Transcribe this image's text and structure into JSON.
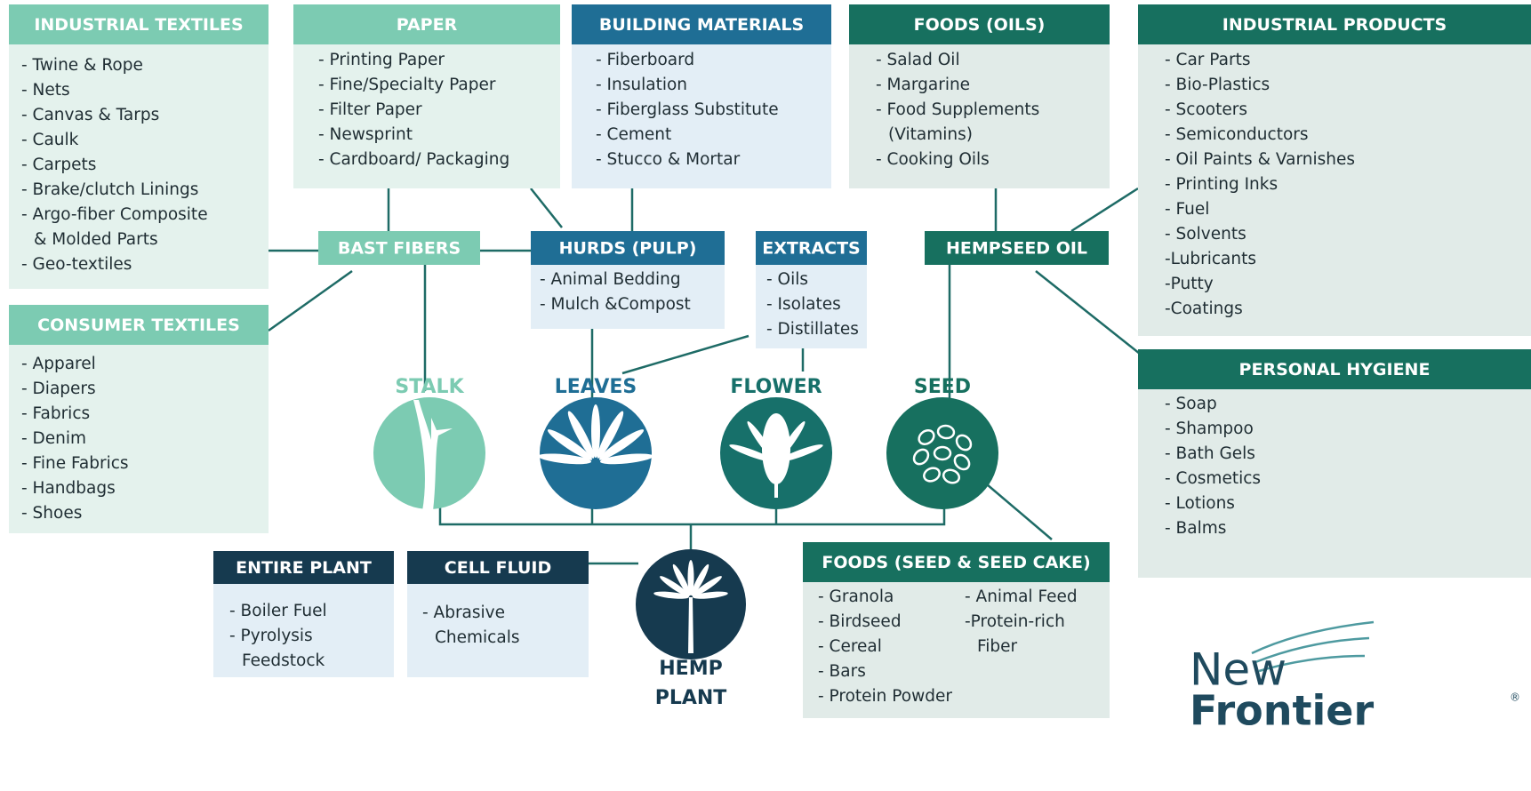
{
  "boxes": [
    {
      "title": "INDUSTRIAL TEXTILES",
      "items": [
        "- Twine & Rope",
        "- Nets",
        "- Canvas & Tarps",
        "- Caulk",
        "- Carpets",
        "- Brake/clutch Linings",
        "- Argo-fiber Composite",
        "& Molded Parts",
        "- Geo-textiles"
      ]
    },
    {
      "title": "PAPER",
      "items": [
        "- Printing Paper",
        "- Fine/Specialty Paper",
        "- Filter Paper",
        "- Newsprint",
        "- Cardboard/ Packaging"
      ]
    },
    {
      "title": "BUILDING MATERIALS",
      "items": [
        "- Fiberboard",
        "- Insulation",
        "- Fiberglass Substitute",
        "- Cement",
        "- Stucco & Mortar"
      ]
    },
    {
      "title": "FOODS (OILS)",
      "items": [
        "- Salad Oil",
        "- Margarine",
        "- Food Supplements",
        "(Vitamins)",
        "- Cooking Oils"
      ]
    },
    {
      "title": "INDUSTRIAL PRODUCTS",
      "items": [
        "- Car Parts",
        "- Bio-Plastics",
        "- Scooters",
        "- Semiconductors",
        "- Oil Paints & Varnishes",
        "- Printing Inks",
        "- Fuel",
        "- Solvents",
        "-Lubricants",
        "-Putty",
        "-Coatings"
      ]
    },
    {
      "title": "CONSUMER TEXTILES",
      "items": [
        "- Apparel",
        "- Diapers",
        "- Fabrics",
        "- Denim",
        "- Fine Fabrics",
        "- Handbags",
        "- Shoes"
      ]
    },
    {
      "title": "PERSONAL HYGIENE",
      "items": [
        "- Soap",
        "- Shampoo",
        "- Bath Gels",
        "- Cosmetics",
        "- Lotions",
        "- Balms"
      ]
    },
    {
      "title": "FOODS (SEED & SEED CAKE)",
      "items": [
        "- Granola",
        "- Birdseed",
        "- Cereal",
        "- Bars",
        "- Protein Powder"
      ],
      "items_2": [
        "- Animal Feed",
        "-Protein-rich",
        "Fiber"
      ]
    },
    {
      "title": "ENTIRE PLANT",
      "items": [
        "- Boiler Fuel",
        "- Pyrolysis",
        "Feedstock"
      ]
    },
    {
      "title": "CELL FLUID",
      "items": [
        "- Abrasive",
        "Chemicals"
      ]
    }
  ],
  "hubs": [
    {
      "title": "BAST FIBERS"
    },
    {
      "title": "HURDS (PULP)",
      "items": [
        "- Animal Bedding",
        "- Mulch &Compost"
      ]
    },
    {
      "title": "EXTRACTS",
      "items": [
        "- Oils",
        "- Isolates",
        "- Distillates"
      ]
    },
    {
      "title": "HEMPSEED OIL"
    }
  ],
  "parts": [
    "STALK",
    "LEAVES",
    "FLOWER",
    "SEED"
  ],
  "root": [
    "HEMP",
    "PLANT"
  ],
  "logo": {
    "line1": "New",
    "line2": "Frontier",
    "mark": "®"
  }
}
